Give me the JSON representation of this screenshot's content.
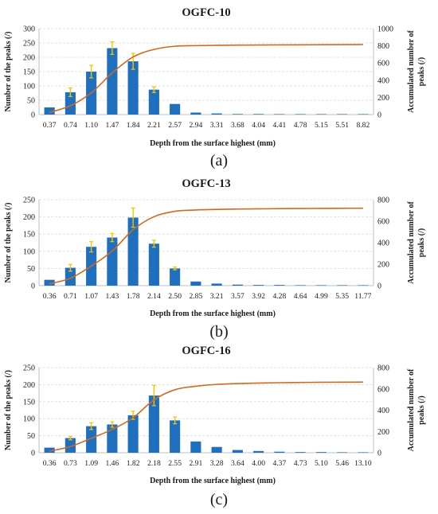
{
  "figure": {
    "panel_labels": [
      "(a)",
      "(b)",
      "(c)"
    ]
  },
  "style": {
    "bar_color": "#1f6fbf",
    "error_color": "#f5c400",
    "line_color": "#d2691e",
    "axis_color": "#bfbfbf",
    "grid_color": "#e3e3e3"
  },
  "chart_data": [
    {
      "type": "bar",
      "title": "OGFC-10",
      "xlabel": "Depth from the surface highest (mm)",
      "ylabel": "Number of the peaks (/)",
      "y2label_lines": [
        "Accumulated number of",
        "peaks (/)"
      ],
      "categories": [
        "0.37",
        "0.74",
        "1.10",
        "1.47",
        "1.84",
        "2.21",
        "2.57",
        "2.94",
        "3.31",
        "3.68",
        "4.04",
        "4.41",
        "4.78",
        "5.15",
        "5.51",
        "8.82"
      ],
      "ylim": [
        0,
        300
      ],
      "yticks": [
        0,
        50,
        100,
        150,
        200,
        250,
        300
      ],
      "y2lim": [
        0,
        1000
      ],
      "y2ticks": [
        0,
        200,
        400,
        600,
        800,
        1000
      ],
      "grid": true,
      "series": [
        {
          "kind": "bar",
          "values": [
            25,
            78,
            150,
            232,
            186,
            87,
            37,
            7,
            4,
            2,
            2,
            1,
            1,
            1,
            1,
            1
          ],
          "errors": [
            0,
            15,
            22,
            22,
            28,
            10,
            0,
            0,
            0,
            0,
            0,
            0,
            0,
            0,
            0,
            0
          ]
        },
        {
          "kind": "line",
          "axis": "right",
          "values": [
            25,
            103,
            253,
            485,
            671,
            758,
            795,
            802,
            806,
            808,
            810,
            811,
            812,
            813,
            814,
            815
          ]
        }
      ]
    },
    {
      "type": "bar",
      "title": "OGFC-13",
      "xlabel": "Depth from the surface highest (mm)",
      "ylabel": "Number of the peaks (/)",
      "y2label_lines": [
        "Accumulated number of",
        "peaks (/)"
      ],
      "categories": [
        "0.36",
        "0.71",
        "1.07",
        "1.43",
        "1.78",
        "2.14",
        "2.50",
        "2.85",
        "3.21",
        "3.57",
        "3.92",
        "4.28",
        "4.64",
        "4.99",
        "5.35",
        "11.77"
      ],
      "ylim": [
        0,
        250
      ],
      "yticks": [
        0,
        50,
        100,
        150,
        200,
        250
      ],
      "y2lim": [
        0,
        800
      ],
      "y2ticks": [
        0,
        200,
        400,
        600,
        800
      ],
      "grid": true,
      "series": [
        {
          "kind": "bar",
          "values": [
            17,
            52,
            113,
            140,
            198,
            122,
            50,
            12,
            6,
            3,
            2,
            2,
            1,
            1,
            1,
            1
          ],
          "errors": [
            0,
            10,
            15,
            12,
            28,
            10,
            4,
            0,
            0,
            0,
            0,
            0,
            0,
            0,
            0,
            0
          ]
        },
        {
          "kind": "line",
          "axis": "right",
          "values": [
            17,
            69,
            182,
            322,
            520,
            642,
            692,
            704,
            710,
            713,
            715,
            717,
            718,
            719,
            720,
            721
          ]
        }
      ]
    },
    {
      "type": "bar",
      "title": "OGFC-16",
      "xlabel": "Depth from the surface highest (mm)",
      "ylabel": "Number of the peaks (/)",
      "y2label_lines": [
        "Accumulated number of",
        "peaks (/)"
      ],
      "categories": [
        "0.36",
        "0.73",
        "1.09",
        "1.46",
        "1.82",
        "2.18",
        "2.55",
        "2.91",
        "3.28",
        "3.64",
        "4.00",
        "4.37",
        "4.73",
        "5.10",
        "5.46",
        "13.10"
      ],
      "ylim": [
        0,
        250
      ],
      "yticks": [
        0,
        50,
        100,
        150,
        200,
        250
      ],
      "y2lim": [
        0,
        800
      ],
      "y2ticks": [
        0,
        200,
        400,
        600,
        800
      ],
      "grid": true,
      "series": [
        {
          "kind": "bar",
          "values": [
            15,
            43,
            78,
            83,
            110,
            168,
            95,
            33,
            17,
            8,
            5,
            3,
            2,
            2,
            1,
            1
          ],
          "errors": [
            0,
            5,
            10,
            8,
            12,
            30,
            10,
            0,
            0,
            0,
            0,
            0,
            0,
            0,
            0,
            0
          ]
        },
        {
          "kind": "line",
          "axis": "right",
          "values": [
            15,
            58,
            136,
            219,
            329,
            497,
            592,
            625,
            642,
            650,
            655,
            658,
            660,
            662,
            663,
            664
          ]
        }
      ]
    }
  ]
}
